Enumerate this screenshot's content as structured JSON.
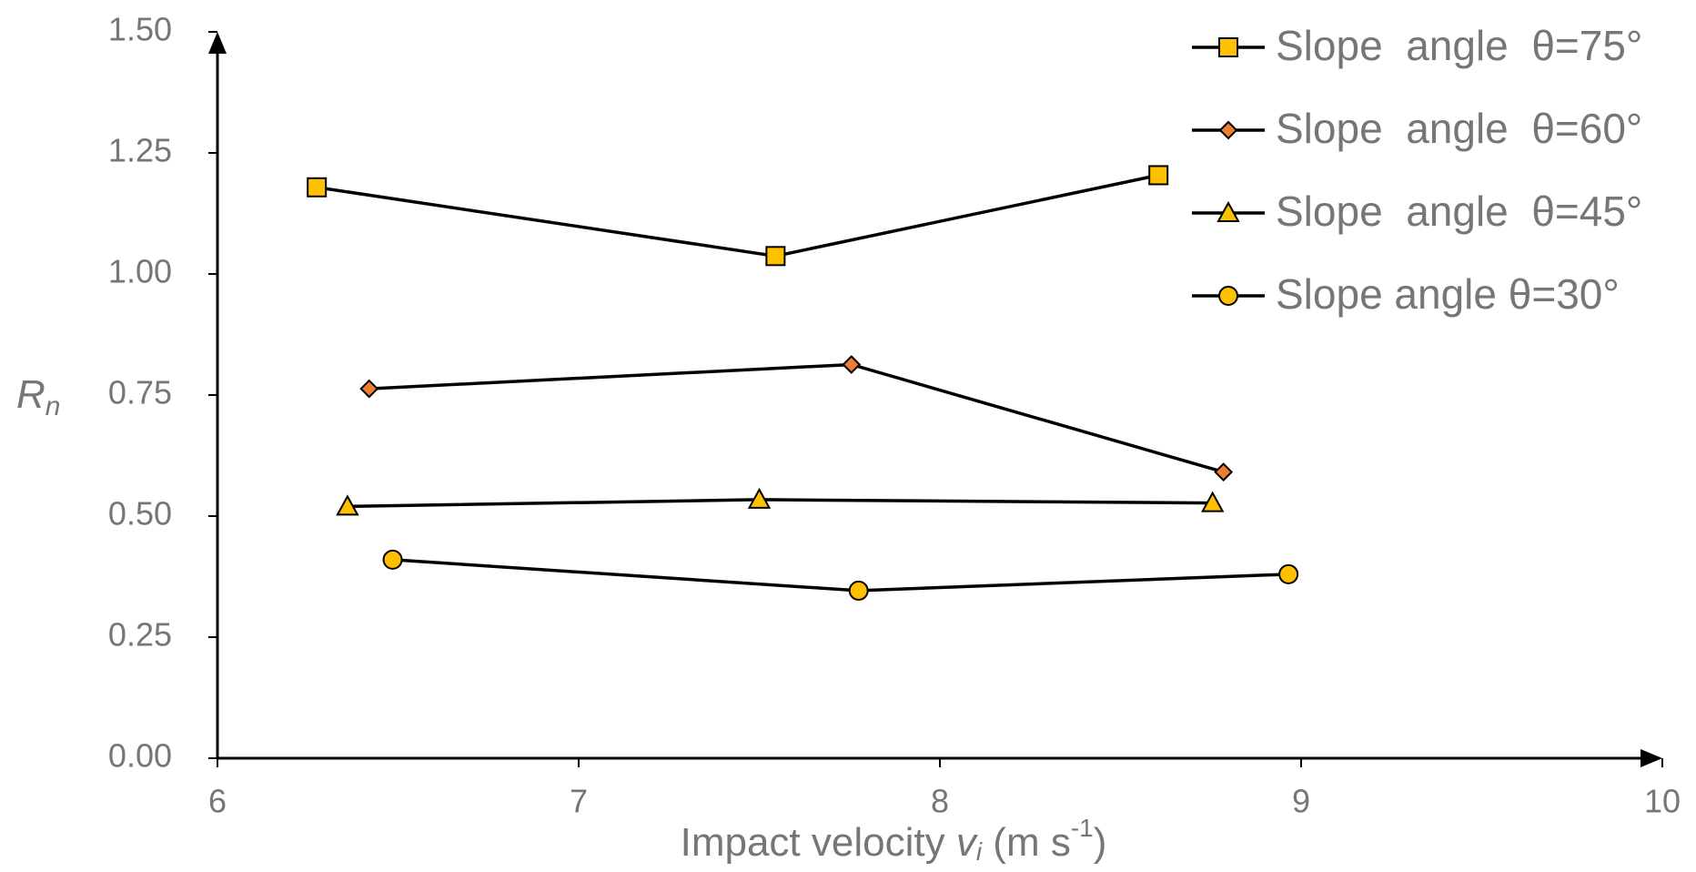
{
  "chart_data": {
    "type": "line",
    "xlabel": [
      "Impact velocity ",
      "v",
      "i",
      " (m s",
      "-1",
      ")"
    ],
    "ylabel": [
      "R",
      "n"
    ],
    "xlim": [
      6,
      10
    ],
    "xticks": [
      6,
      7,
      8,
      9,
      10
    ],
    "ylim": [
      0,
      1.5
    ],
    "yticks": [
      {
        "value": 0,
        "label": "0.00"
      },
      {
        "value": 0.25,
        "label": "0.25"
      },
      {
        "value": 0.5,
        "label": "0.50"
      },
      {
        "value": 0.75,
        "label": "0.75"
      },
      {
        "value": 1.0,
        "label": "1.00"
      },
      {
        "value": 1.25,
        "label": "1.25"
      },
      {
        "value": 1.5,
        "label": "1.50"
      }
    ],
    "legend": "upper right",
    "line_color": "#000000",
    "series": [
      {
        "name": "Slope  angle  θ=75°",
        "color": "#ffc000",
        "marker": "square",
        "x": [
          6.275,
          7.545,
          8.605
        ],
        "values": [
          1.179,
          1.037,
          1.204
        ]
      },
      {
        "name": "Slope  angle  θ=60°",
        "color": "#ed7d31",
        "marker": "diamond",
        "x": [
          6.42,
          7.755,
          8.785
        ],
        "values": [
          0.763,
          0.813,
          0.591
        ]
      },
      {
        "name": "Slope  angle  θ=45°",
        "color": "#ffc000",
        "marker": "triangle",
        "x": [
          6.36,
          7.5,
          8.755
        ],
        "values": [
          0.52,
          0.534,
          0.527
        ]
      },
      {
        "name": "Slope angle θ=30°",
        "color": "#ffc000",
        "marker": "circle",
        "x": [
          6.485,
          7.775,
          8.965
        ],
        "values": [
          0.41,
          0.346,
          0.38
        ]
      }
    ]
  }
}
